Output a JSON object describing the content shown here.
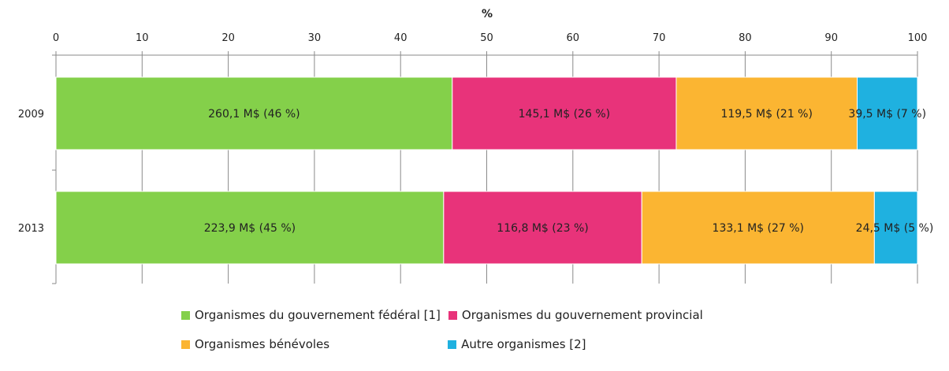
{
  "chart_data": {
    "type": "bar",
    "orientation": "horizontal",
    "stacked": true,
    "title": "",
    "xlabel": "%",
    "ylabel": "",
    "xlim": [
      0,
      100
    ],
    "x_ticks": [
      "0",
      "10",
      "20",
      "30",
      "40",
      "50",
      "60",
      "70",
      "80",
      "90",
      "100"
    ],
    "axis_position": "top",
    "grid": true,
    "legend_position": "bottom",
    "categories": [
      "2009",
      "2013"
    ],
    "series": [
      {
        "name": "Organismes du gouvernement fédéral [1]",
        "color": "#84d04a",
        "values": [
          46,
          45
        ],
        "labels": [
          "260,1 M$ (46 %)",
          "223,9 M$ (45 %)"
        ]
      },
      {
        "name": "Organismes du gouvernement provincial",
        "color": "#e8337a",
        "values": [
          26,
          23
        ],
        "labels": [
          "145,1 M$ (26 %)",
          "116,8 M$ (23 %)"
        ]
      },
      {
        "name": "Organismes bénévoles",
        "color": "#fbb532",
        "values": [
          21,
          27
        ],
        "labels": [
          "119,5 M$ (21 %)",
          "133,1 M$ (27 %)"
        ]
      },
      {
        "name": "Autre organismes [2]",
        "color": "#1fb1e0",
        "values": [
          7,
          5
        ],
        "labels": [
          "39,5 M$ (7 %)",
          "24,5 M$ (5 %)"
        ]
      }
    ]
  }
}
